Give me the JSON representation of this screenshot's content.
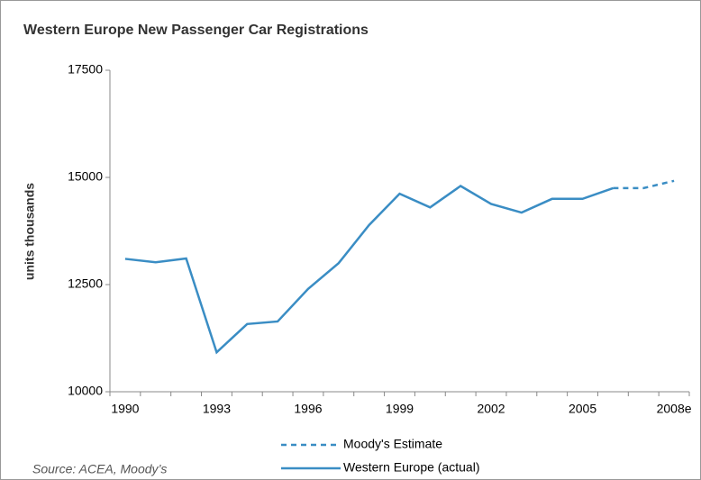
{
  "chart_data": {
    "type": "line",
    "title": "Western Europe New Passenger Car Registrations",
    "ylabel": "units thousands",
    "note": "Source: ACEA, Moody’s",
    "categories": [
      "1990",
      null,
      null,
      "1993",
      null,
      null,
      "1996",
      null,
      null,
      "1999",
      null,
      null,
      "2002",
      null,
      null,
      "2005",
      null,
      null,
      "2008e"
    ],
    "series": [
      {
        "name": "Moody's Estimate",
        "color": "#3a8dc4",
        "dashed": true,
        "values": [
          null,
          null,
          null,
          null,
          null,
          null,
          null,
          null,
          null,
          null,
          null,
          null,
          null,
          null,
          null,
          null,
          14750,
          14750,
          14920
        ]
      },
      {
        "name": "Western Europe (actual)",
        "color": "#3a8dc4",
        "dashed": false,
        "values": [
          13100,
          13020,
          13110,
          10920,
          11580,
          11640,
          12400,
          13000,
          13890,
          14620,
          14300,
          14800,
          14380,
          14180,
          14500,
          14500,
          14750,
          null,
          null
        ]
      }
    ],
    "ylim": [
      10000,
      17500
    ],
    "yticks": [
      10000,
      12500,
      15000,
      17500
    ],
    "grid": false,
    "legend": "bottom"
  }
}
